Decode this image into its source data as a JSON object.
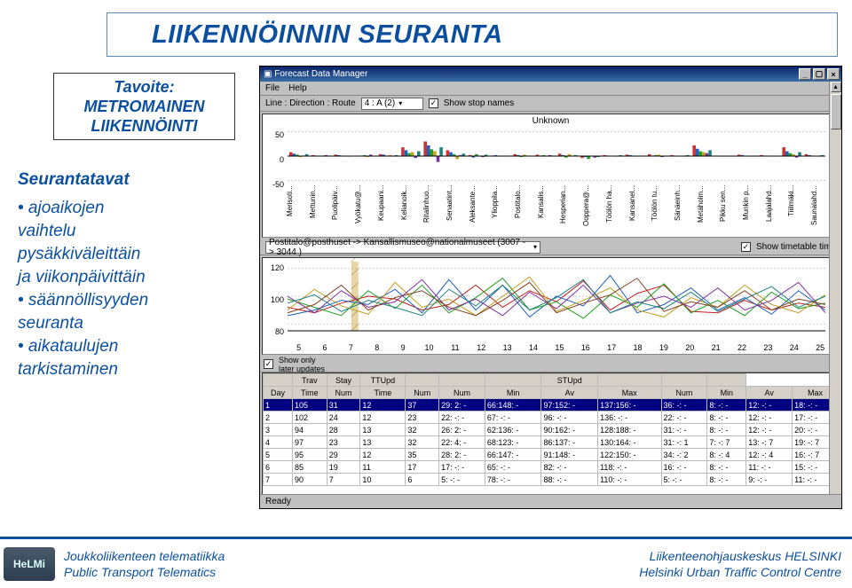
{
  "slide": {
    "title": "LIIKENNÖINNIN SEURANTA",
    "goal_heading": "Tavoite:",
    "goal_line1": "METROMAINEN",
    "goal_line2": "LIIKENNÖINTI",
    "content_heading": "Seurantatavat",
    "bullets": [
      "• ajoaikojen",
      "vaihtelu",
      "pysäkkiväleittäin",
      "ja viikonpäivittäin",
      "• säännöllisyyden",
      "seuranta",
      "• aikataulujen",
      "tarkistaminen"
    ]
  },
  "footer": {
    "logo": "HeLMi",
    "left1": "Joukkoliikenteen telematiikka",
    "left2": "Public Transport Telematics",
    "right1": "Liikenteenohjauskeskus HELSINKI",
    "right2": "Helsinki Urban Traffic Control Centre"
  },
  "app": {
    "title_icon": "▣",
    "title": "Forecast Data Manager",
    "menus": [
      "File",
      "Help"
    ],
    "toolbar1": {
      "label": "Line : Direction : Route",
      "value": "4 : A (2)",
      "chk_label": "Show stop names",
      "chk_checked": "✓"
    },
    "chart1": {
      "title": "Unknown",
      "yticks": [
        "50",
        "0",
        "-50"
      ],
      "stops": [
        "Merisoti...",
        "Mettunin...",
        "Puolipäiv...",
        "Vyökatu@...",
        "Keupaani...",
        "Kelianoik...",
        "Ritalinhuo...",
        "Senaatint...",
        "Aleksante...",
        "Ylioppila...",
        "Postitalo...",
        "Kansalis...",
        "Hesperian...",
        "Ooppera@...",
        "Töölön ha...",
        "Kansanel...",
        "Töölön tu...",
        "Sänäeinh...",
        "Metäholm...",
        "Pikku sen...",
        "Munkin p...",
        "Laajalahd...",
        "Tiiilmäki...",
        "Saunalahd..."
      ],
      "bar_colors": [
        "#d03030",
        "#2060c0",
        "#20a020",
        "#c0a020",
        "#8030a0",
        "#208080"
      ],
      "bar_groups": [
        [
          8,
          5,
          3,
          -2,
          1,
          4
        ],
        [
          2,
          1,
          0,
          -1,
          2,
          1
        ],
        [
          3,
          2,
          1,
          0,
          -1,
          1
        ],
        [
          1,
          0,
          2,
          -2,
          3,
          0
        ],
        [
          4,
          3,
          1,
          2,
          -1,
          2
        ],
        [
          18,
          12,
          6,
          8,
          -4,
          10
        ],
        [
          30,
          22,
          14,
          10,
          -12,
          18
        ],
        [
          12,
          8,
          4,
          -6,
          2,
          5
        ],
        [
          2,
          -3,
          4,
          1,
          -2,
          3
        ],
        [
          1,
          2,
          -1,
          0,
          1,
          -1
        ],
        [
          4,
          2,
          -2,
          3,
          1,
          0
        ],
        [
          3,
          1,
          2,
          -1,
          2,
          1
        ],
        [
          5,
          2,
          -3,
          4,
          1,
          2
        ],
        [
          -4,
          -2,
          -6,
          -1,
          -3,
          -2
        ],
        [
          2,
          1,
          0,
          1,
          -1,
          2
        ],
        [
          3,
          2,
          1,
          -1,
          0,
          1
        ],
        [
          4,
          1,
          2,
          3,
          -2,
          1
        ],
        [
          2,
          1,
          0,
          -1,
          1,
          2
        ],
        [
          22,
          15,
          10,
          8,
          6,
          12
        ],
        [
          1,
          0,
          -1,
          1,
          0,
          -1
        ],
        [
          3,
          2,
          1,
          0,
          -1,
          1
        ],
        [
          2,
          1,
          0,
          1,
          -1,
          0
        ],
        [
          18,
          10,
          6,
          4,
          -3,
          8
        ],
        [
          4,
          2,
          1,
          0,
          -1,
          2
        ]
      ],
      "ymax": 60,
      "ymin": -60,
      "grid_color": "#cccccc",
      "bg": "#ffffff"
    },
    "toolbar2": {
      "label1": "Postitalo@posthuset  ->  Kansallismuseo@nationalmuseet (3007 -> 3044 )",
      "chk_label": "Show timetable time",
      "chk_checked": "✓"
    },
    "chart2": {
      "yticks": [
        "120",
        "100",
        "80"
      ],
      "xticks": [
        "5",
        "6",
        "7",
        "8",
        "9",
        "10",
        "11",
        "12",
        "13",
        "14",
        "15",
        "16",
        "17",
        "18",
        "19",
        "20",
        "21",
        "22",
        "23",
        "24",
        "25"
      ],
      "ylim": [
        75,
        125
      ],
      "line_colors": [
        "#c02020",
        "#2060c0",
        "#20a020",
        "#c0a020",
        "#8030a0",
        "#208080",
        "#804020"
      ],
      "series": [
        [
          92,
          88,
          95,
          100,
          98,
          90,
          94,
          108,
          92,
          104,
          96,
          111,
          90,
          102,
          108,
          89,
          88,
          97,
          90,
          95,
          92
        ],
        [
          86,
          90,
          97,
          94,
          105,
          88,
          112,
          90,
          108,
          85,
          100,
          93,
          115,
          88,
          94,
          106,
          90,
          99,
          87,
          104,
          90
        ],
        [
          98,
          92,
          86,
          104,
          91,
          108,
          88,
          99,
          113,
          90,
          96,
          84,
          101,
          92,
          109,
          88,
          97,
          86,
          103,
          91,
          95
        ],
        [
          90,
          105,
          93,
          87,
          110,
          92,
          98,
          86,
          100,
          114,
          89,
          97,
          106,
          90,
          85,
          99,
          92,
          108,
          94,
          88,
          101
        ],
        [
          100,
          88,
          104,
          92,
          96,
          112,
          90,
          98,
          86,
          103,
          91,
          108,
          88,
          95,
          100,
          92,
          106,
          90,
          97,
          110,
          88
        ],
        [
          95,
          101,
          89,
          97,
          92,
          86,
          105,
          93,
          108,
          90,
          99,
          112,
          88,
          96,
          91,
          103,
          89,
          98,
          107,
          92,
          100
        ],
        [
          88,
          94,
          108,
          90,
          99,
          104,
          92,
          86,
          97,
          110,
          88,
          95,
          101,
          113,
          89,
          96,
          92,
          104,
          90,
          98,
          94
        ]
      ],
      "hatched_x": 7.5,
      "hatched_color": "#d0b050",
      "grid_color": "#cccccc",
      "bg": "#ffffff"
    },
    "tablepane": {
      "chk_label1": "Show only",
      "chk_label2": "later updates",
      "chk_checked": "✓",
      "group_headers": [
        "",
        "Trav",
        "Stay",
        "TTUpd",
        "",
        "",
        "",
        "STUpd",
        "",
        "",
        ""
      ],
      "columns": [
        "Day",
        "Time",
        "Num",
        "Time",
        "Num",
        "Num",
        "Min",
        "Av",
        "Max",
        "Num",
        "Min",
        "Av",
        "Max"
      ],
      "selected_row": 0,
      "rows": [
        [
          "1",
          "105",
          "31",
          "12",
          "37",
          "29:  2:  -",
          "66:148:  -",
          "97:152:  -",
          "137:156:  -",
          "36:  -:  -",
          "8:  -:  -",
          "12:  -:  -",
          "18:  -:  -"
        ],
        [
          "2",
          "102",
          "24",
          "12",
          "23",
          "22:  -:  -",
          "67:  -:  -",
          "96:  -:  -",
          "136:  -:  -",
          "22:  -:  -",
          "8:  -:  -",
          "12:  -:  -",
          "17:  -:  -"
        ],
        [
          "3",
          "94",
          "28",
          "13",
          "32",
          "26:  2:  -",
          "62:136:  -",
          "90:162:  -",
          "128:188:  -",
          "31:  -:  -",
          "8:  -:  -",
          "12:  -:  -",
          "20:  -:  -"
        ],
        [
          "4",
          "97",
          "23",
          "13",
          "32",
          "22:  4:  -",
          "68:123:  -",
          "86:137:  -",
          "130:164:  -",
          "31:  -:  1",
          "7:  -:  7",
          "13:  -:  7",
          "19:  -:  7"
        ],
        [
          "5",
          "95",
          "29",
          "12",
          "35",
          "28:  2:  -",
          "66:147:  -",
          "91:148:  -",
          "122:150:  -",
          "34:  -:  2",
          "8:  -:  4",
          "12:  -:  4",
          "16:  -:  7"
        ],
        [
          "6",
          "85",
          "19",
          "11",
          "17",
          "17:  -:  -",
          "65:  -:  -",
          "82:  -:  -",
          "118:  -:  -",
          "16:  -:  -",
          "8:  -:  -",
          "11:  -:  -",
          "15:  -:  -"
        ],
        [
          "7",
          "90",
          "7",
          "10",
          "6",
          "5:  -:  -",
          "78:  -:  -",
          "88:  -:  -",
          "110:  -:  -",
          "5:  -:  -",
          "8:  -:  -",
          "9:  -:  -",
          "11:  -:  -"
        ]
      ]
    },
    "status": "Ready"
  },
  "colors": {
    "brand": "#0b4f9e",
    "win_title": "#0a246a",
    "win_bg": "#c0c0c0"
  }
}
